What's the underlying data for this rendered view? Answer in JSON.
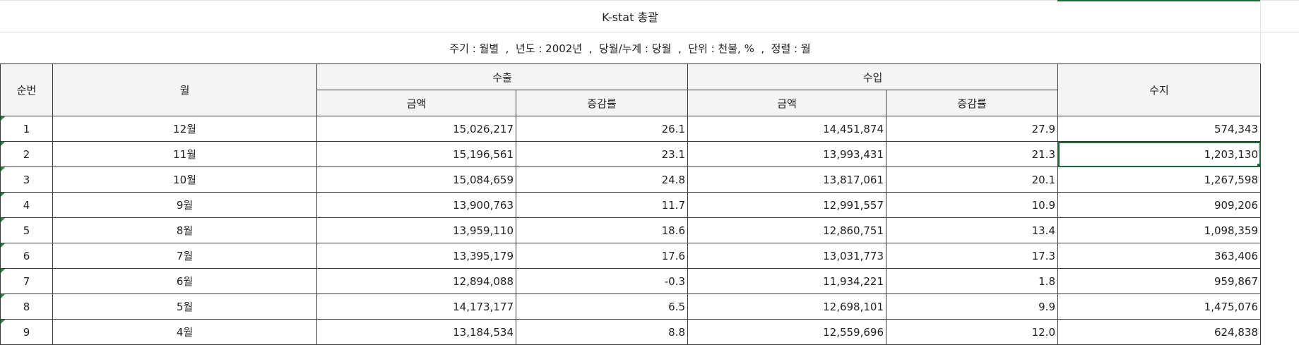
{
  "report": {
    "title": "K-stat 총괄",
    "subtitle": "주기 : 월별  ,  년도 : 2002년  ,  당월/누계 : 당월  ,  단위 : 천불, %  ,  정렬 : 월"
  },
  "table": {
    "headers": {
      "seq": "순번",
      "month": "월",
      "export": "수출",
      "import": "수입",
      "balance": "수지",
      "amount": "금액",
      "rate": "증감률"
    },
    "rows": [
      {
        "seq": "1",
        "month": "12월",
        "export_amount": "15,026,217",
        "export_rate": "26.1",
        "import_amount": "14,451,874",
        "import_rate": "27.9",
        "balance": "574,343"
      },
      {
        "seq": "2",
        "month": "11월",
        "export_amount": "15,196,561",
        "export_rate": "23.1",
        "import_amount": "13,993,431",
        "import_rate": "21.3",
        "balance": "1,203,130"
      },
      {
        "seq": "3",
        "month": "10월",
        "export_amount": "15,084,659",
        "export_rate": "24.8",
        "import_amount": "13,817,061",
        "import_rate": "20.1",
        "balance": "1,267,598"
      },
      {
        "seq": "4",
        "month": "9월",
        "export_amount": "13,900,763",
        "export_rate": "11.7",
        "import_amount": "12,991,557",
        "import_rate": "10.9",
        "balance": "909,206"
      },
      {
        "seq": "5",
        "month": "8월",
        "export_amount": "13,959,110",
        "export_rate": "18.6",
        "import_amount": "12,860,751",
        "import_rate": "13.4",
        "balance": "1,098,359"
      },
      {
        "seq": "6",
        "month": "7월",
        "export_amount": "13,395,179",
        "export_rate": "17.6",
        "import_amount": "13,031,773",
        "import_rate": "17.3",
        "balance": "363,406"
      },
      {
        "seq": "7",
        "month": "6월",
        "export_amount": "12,894,088",
        "export_rate": "-0.3",
        "import_amount": "11,934,221",
        "import_rate": "1.8",
        "balance": "959,867"
      },
      {
        "seq": "8",
        "month": "5월",
        "export_amount": "14,173,177",
        "export_rate": "6.5",
        "import_amount": "12,698,101",
        "import_rate": "9.9",
        "balance": "1,475,076"
      },
      {
        "seq": "9",
        "month": "4월",
        "export_amount": "13,184,534",
        "export_rate": "8.8",
        "import_amount": "12,559,696",
        "import_rate": "12.0",
        "balance": "624,838"
      }
    ]
  },
  "selection": {
    "row": 1,
    "column": "balance"
  },
  "colors": {
    "selection": "#1e6b3a",
    "header_bg": "#f4f4f4",
    "note_marker": "#1e8a3e"
  }
}
